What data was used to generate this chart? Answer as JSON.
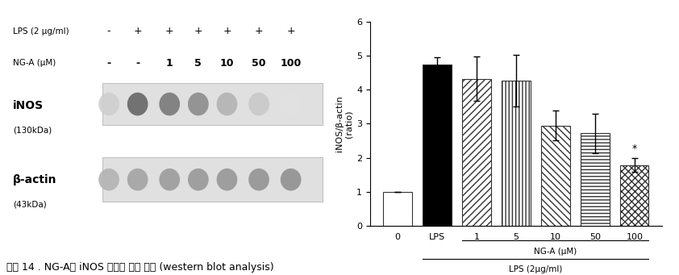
{
  "bar_labels": [
    "0",
    "LPS",
    "1",
    "5",
    "10",
    "50",
    "100"
  ],
  "bar_values": [
    1.0,
    4.75,
    4.33,
    4.27,
    2.95,
    2.72,
    1.78
  ],
  "bar_errors": [
    0.0,
    0.22,
    0.65,
    0.75,
    0.45,
    0.58,
    0.2
  ],
  "bar_colors": [
    "white",
    "black",
    "white",
    "white",
    "white",
    "white",
    "white"
  ],
  "hatch_patterns": [
    "",
    "",
    "////",
    "||||",
    "\\\\\\\\",
    "----",
    "xxxx"
  ],
  "ylabel": "iNOS/β-actin\n(ratio)",
  "ylim": [
    0,
    6
  ],
  "yticks": [
    0,
    1,
    2,
    3,
    4,
    5,
    6
  ],
  "xlabel_ng": "NG-A (μM)",
  "xlabel_lps": "LPS (2μg/ml)",
  "star_label": "*",
  "background_color": "#ffffff",
  "edgecolor": "#333333",
  "figure_caption": "그림 14 . NG-A의 iNOS 단백질 발현 저해 (western blot analysis)"
}
